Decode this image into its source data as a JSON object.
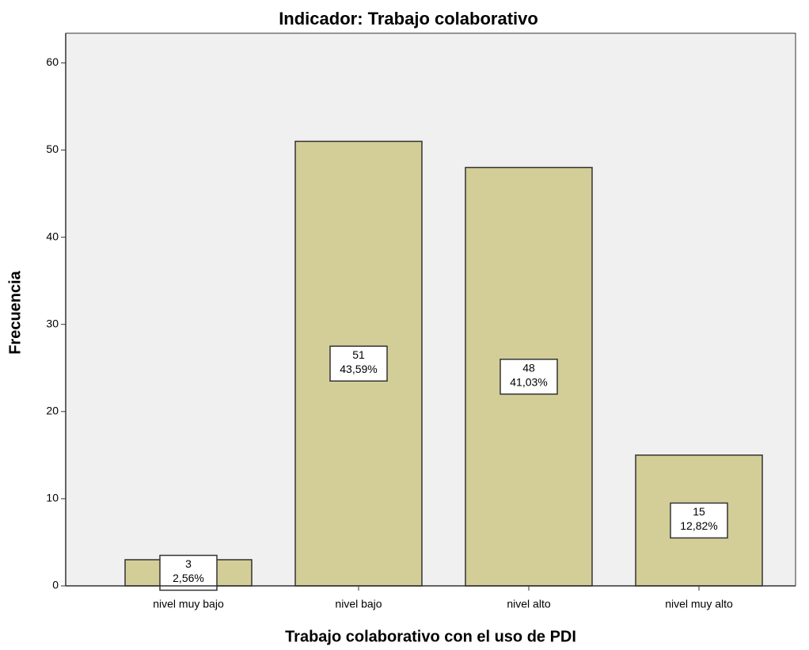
{
  "chart_data": {
    "type": "bar",
    "title": "Indicador: Trabajo colaborativo",
    "x_label": "Trabajo colaborativo con el uso de PDI",
    "y_label": "Frecuencia",
    "categories": [
      "nivel muy bajo",
      "nivel bajo",
      "nivel alto",
      "nivel muy alto"
    ],
    "values": [
      3,
      51,
      48,
      15
    ],
    "percentages": [
      2.56,
      43.59,
      41.03,
      12.82
    ],
    "percentage_labels": [
      "2,56%",
      "43,59%",
      "41,03%",
      "12,82%"
    ],
    "color": "#d3ce97",
    "ylim": [
      0,
      63.4
    ],
    "yticks": [
      0,
      10,
      20,
      30,
      40,
      50,
      60
    ],
    "grid": false
  }
}
